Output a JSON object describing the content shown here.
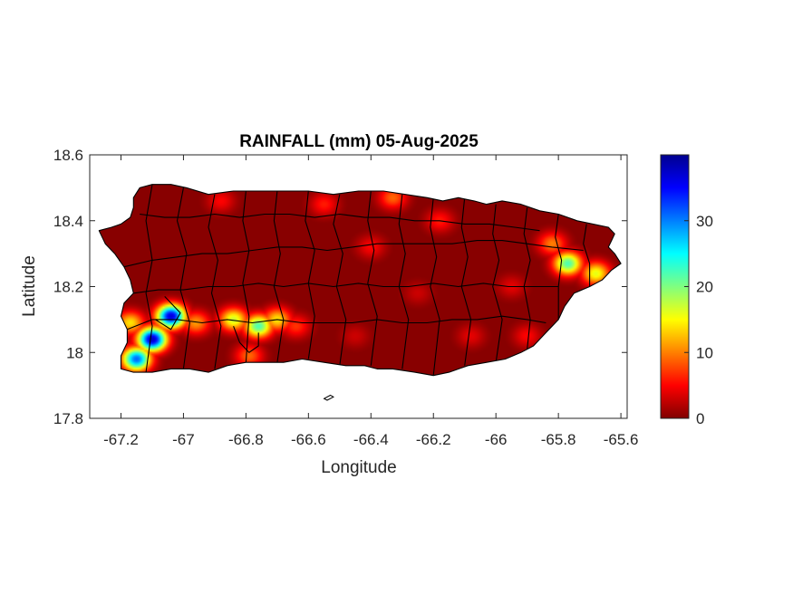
{
  "chart_data": {
    "type": "heatmap",
    "title": "RAINFALL (mm) 05-Aug-2025",
    "xlabel": "Longitude",
    "ylabel": "Latitude",
    "xlim": [
      -67.3,
      -65.58
    ],
    "ylim": [
      17.8,
      18.6
    ],
    "xticks": [
      -67.2,
      -67.0,
      -66.8,
      -66.6,
      -66.4,
      -66.2,
      -66.0,
      -65.8,
      -65.6
    ],
    "xtick_labels": [
      "-67.2",
      "-67",
      "-66.8",
      "-66.6",
      "-66.4",
      "-66.2",
      "-66",
      "-65.8",
      "-65.6"
    ],
    "yticks": [
      17.8,
      18.0,
      18.2,
      18.4,
      18.6
    ],
    "ytick_labels": [
      "17.8",
      "18",
      "18.2",
      "18.4",
      "18.6"
    ],
    "colorbar": {
      "colormap": "jet",
      "range": [
        0,
        40
      ],
      "ticks": [
        0,
        10,
        20,
        30
      ],
      "tick_labels": [
        "0",
        "10",
        "20",
        "30"
      ]
    },
    "rainfall_maxima": [
      {
        "lon": -67.04,
        "lat": 18.11,
        "mm": 37
      },
      {
        "lon": -67.1,
        "lat": 18.04,
        "mm": 38
      },
      {
        "lon": -67.15,
        "lat": 17.98,
        "mm": 31
      },
      {
        "lon": -67.17,
        "lat": 18.09,
        "mm": 14
      },
      {
        "lon": -66.96,
        "lat": 18.09,
        "mm": 11
      },
      {
        "lon": -66.84,
        "lat": 18.1,
        "mm": 17
      },
      {
        "lon": -66.76,
        "lat": 18.08,
        "mm": 22
      },
      {
        "lon": -66.7,
        "lat": 18.1,
        "mm": 14
      },
      {
        "lon": -66.64,
        "lat": 18.08,
        "mm": 7
      },
      {
        "lon": -66.79,
        "lat": 17.99,
        "mm": 9
      },
      {
        "lon": -65.77,
        "lat": 18.27,
        "mm": 22
      },
      {
        "lon": -65.68,
        "lat": 18.24,
        "mm": 16
      },
      {
        "lon": -65.82,
        "lat": 18.33,
        "mm": 10
      },
      {
        "lon": -66.33,
        "lat": 18.47,
        "mm": 9
      },
      {
        "lon": -66.55,
        "lat": 18.45,
        "mm": 6
      },
      {
        "lon": -66.88,
        "lat": 18.46,
        "mm": 5
      },
      {
        "lon": -66.18,
        "lat": 18.4,
        "mm": 6
      },
      {
        "lon": -66.4,
        "lat": 18.32,
        "mm": 5
      },
      {
        "lon": -66.08,
        "lat": 18.05,
        "mm": 4
      },
      {
        "lon": -65.9,
        "lat": 18.05,
        "mm": 5
      },
      {
        "lon": -65.95,
        "lat": 18.2,
        "mm": 4
      },
      {
        "lon": -66.25,
        "lat": 18.18,
        "mm": 3
      },
      {
        "lon": -66.45,
        "lat": 18.05,
        "mm": 3
      }
    ],
    "background_mm": 0.3,
    "grid": false
  }
}
